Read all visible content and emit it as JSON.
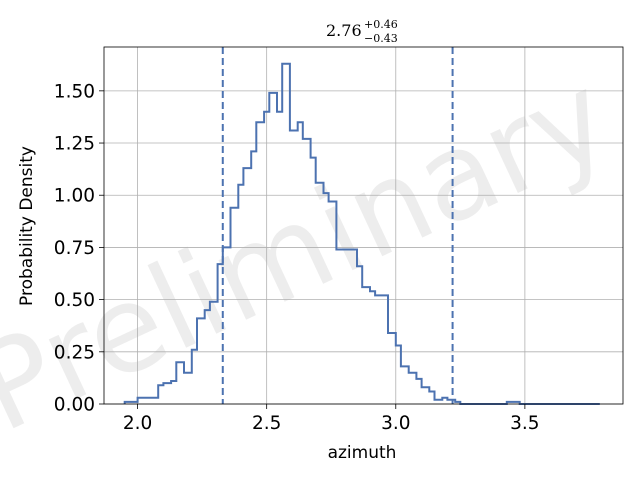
{
  "chart_data": {
    "type": "histogram",
    "title": {
      "value": "2.76",
      "upper_error": "+0.46",
      "lower_error": "−0.43"
    },
    "xlabel": "azimuth",
    "ylabel": "Probability Density",
    "xlim": [
      1.87,
      3.88
    ],
    "ylim": [
      0.0,
      1.71
    ],
    "xticks": [
      2.0,
      2.5,
      3.0,
      3.5
    ],
    "xtick_labels": [
      "2.0",
      "2.5",
      "3.0",
      "3.5"
    ],
    "yticks": [
      0.0,
      0.25,
      0.5,
      0.75,
      1.0,
      1.25,
      1.5
    ],
    "ytick_labels": [
      "0.00",
      "0.25",
      "0.50",
      "0.75",
      "1.00",
      "1.25",
      "1.50"
    ],
    "grid": true,
    "series": [
      {
        "style": "step",
        "color": "#4c72b0",
        "bin_edges": [
          1.95,
          1.98,
          2.0,
          2.03,
          2.05,
          2.08,
          2.1,
          2.13,
          2.15,
          2.18,
          2.21,
          2.23,
          2.26,
          2.28,
          2.31,
          2.33,
          2.36,
          2.39,
          2.41,
          2.44,
          2.46,
          2.49,
          2.51,
          2.54,
          2.56,
          2.59,
          2.62,
          2.64,
          2.67,
          2.69,
          2.72,
          2.74,
          2.77,
          2.79,
          2.82,
          2.85,
          2.87,
          2.9,
          2.92,
          2.95,
          2.97,
          3.0,
          3.02,
          3.05,
          3.08,
          3.1,
          3.13,
          3.15,
          3.18,
          3.2,
          3.23,
          3.25,
          3.28,
          3.31,
          3.33,
          3.36,
          3.38,
          3.41,
          3.43,
          3.46,
          3.48,
          3.51,
          3.54,
          3.56,
          3.59,
          3.61,
          3.64,
          3.66,
          3.69,
          3.71,
          3.74,
          3.77,
          3.79
        ],
        "values": [
          0.01,
          0.01,
          0.03,
          0.03,
          0.03,
          0.09,
          0.1,
          0.11,
          0.2,
          0.15,
          0.26,
          0.41,
          0.45,
          0.49,
          0.67,
          0.75,
          0.94,
          1.05,
          1.13,
          1.21,
          1.35,
          1.4,
          1.49,
          1.4,
          1.63,
          1.31,
          1.35,
          1.27,
          1.18,
          1.06,
          1.01,
          0.97,
          0.74,
          0.74,
          0.74,
          0.66,
          0.56,
          0.54,
          0.52,
          0.52,
          0.34,
          0.28,
          0.18,
          0.15,
          0.12,
          0.08,
          0.06,
          0.02,
          0.03,
          0.02,
          0.01,
          0.0,
          0.0,
          0.0,
          0.0,
          0.0,
          0.0,
          0.0,
          0.01,
          0.01,
          0.0,
          0.0,
          0.0,
          0.0,
          0.0,
          0.0,
          0.0,
          0.0,
          0.0,
          0.0,
          0.0,
          0.0
        ]
      }
    ],
    "vlines": [
      {
        "x": 2.33,
        "style": "dashed",
        "color": "#4c72b0"
      },
      {
        "x": 3.22,
        "style": "dashed",
        "color": "#4c72b0"
      }
    ],
    "watermark": "Preliminary"
  }
}
